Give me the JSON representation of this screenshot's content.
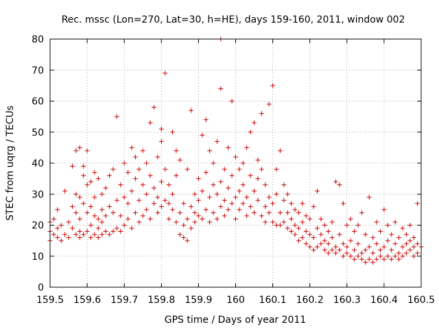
{
  "chart_data": {
    "type": "scatter",
    "title": "Rec. mssc (Lon=270, Lat=30, h=HE), days 159-160, 2011, window 002",
    "xlabel": "GPS time / Days of year 2011",
    "ylabel": "STEC from uqrg / TECUs",
    "xlim": [
      159.5,
      160.5
    ],
    "ylim": [
      0,
      80
    ],
    "x_ticks": [
      159.5,
      159.6,
      159.7,
      159.8,
      159.9,
      160.0,
      160.1,
      160.2,
      160.3,
      160.4,
      160.5
    ],
    "x_tick_labels": [
      "159.5",
      "159.6",
      "159.7",
      "159.8",
      "159.9",
      "160",
      "160.1",
      "160.2",
      "160.3",
      "160.4",
      "160.5"
    ],
    "y_ticks": [
      0,
      10,
      20,
      30,
      40,
      50,
      60,
      70,
      80
    ],
    "y_tick_labels": [
      "0",
      "10",
      "20",
      "30",
      "40",
      "50",
      "60",
      "70",
      "80"
    ],
    "grid": true,
    "marker": "plus",
    "color": "#cc0000",
    "series": [
      {
        "points": [
          [
            159.5,
            15
          ],
          [
            159.5,
            18
          ],
          [
            159.5,
            21
          ],
          [
            159.51,
            17
          ],
          [
            159.51,
            22
          ],
          [
            159.52,
            16
          ],
          [
            159.52,
            19
          ],
          [
            159.52,
            25
          ],
          [
            159.53,
            15
          ],
          [
            159.53,
            20
          ],
          [
            159.54,
            17
          ],
          [
            159.54,
            31
          ],
          [
            159.55,
            16
          ],
          [
            159.55,
            21
          ],
          [
            159.56,
            19
          ],
          [
            159.56,
            26
          ],
          [
            159.56,
            39
          ],
          [
            159.57,
            17
          ],
          [
            159.57,
            24
          ],
          [
            159.57,
            30
          ],
          [
            159.57,
            44
          ],
          [
            159.58,
            16
          ],
          [
            159.58,
            18
          ],
          [
            159.58,
            22
          ],
          [
            159.58,
            29
          ],
          [
            159.58,
            45
          ],
          [
            159.59,
            17
          ],
          [
            159.59,
            27
          ],
          [
            159.59,
            36
          ],
          [
            159.59,
            39
          ],
          [
            159.6,
            18
          ],
          [
            159.6,
            24
          ],
          [
            159.6,
            33
          ],
          [
            159.6,
            44
          ],
          [
            159.61,
            16
          ],
          [
            159.61,
            20
          ],
          [
            159.61,
            26
          ],
          [
            159.61,
            34
          ],
          [
            159.62,
            17
          ],
          [
            159.62,
            23
          ],
          [
            159.62,
            29
          ],
          [
            159.62,
            37
          ],
          [
            159.63,
            16
          ],
          [
            159.63,
            19
          ],
          [
            159.63,
            22
          ],
          [
            159.63,
            35
          ],
          [
            159.64,
            17
          ],
          [
            159.64,
            21
          ],
          [
            159.64,
            25
          ],
          [
            159.64,
            30
          ],
          [
            159.65,
            18
          ],
          [
            159.65,
            23
          ],
          [
            159.65,
            32
          ],
          [
            159.66,
            17
          ],
          [
            159.66,
            26
          ],
          [
            159.66,
            36
          ],
          [
            159.67,
            18
          ],
          [
            159.67,
            24
          ],
          [
            159.67,
            38
          ],
          [
            159.68,
            19
          ],
          [
            159.68,
            28
          ],
          [
            159.68,
            55
          ],
          [
            159.69,
            18
          ],
          [
            159.69,
            23
          ],
          [
            159.69,
            33
          ],
          [
            159.7,
            20
          ],
          [
            159.7,
            29
          ],
          [
            159.7,
            40
          ],
          [
            159.71,
            22
          ],
          [
            159.71,
            27
          ],
          [
            159.71,
            37
          ],
          [
            159.72,
            19
          ],
          [
            159.72,
            31
          ],
          [
            159.72,
            45
          ],
          [
            159.73,
            24
          ],
          [
            159.73,
            35
          ],
          [
            159.73,
            42
          ],
          [
            159.74,
            21
          ],
          [
            159.74,
            28
          ],
          [
            159.74,
            38
          ],
          [
            159.75,
            23
          ],
          [
            159.75,
            33
          ],
          [
            159.75,
            44
          ],
          [
            159.76,
            25
          ],
          [
            159.76,
            30
          ],
          [
            159.76,
            40
          ],
          [
            159.77,
            22
          ],
          [
            159.77,
            36
          ],
          [
            159.77,
            53
          ],
          [
            159.78,
            27
          ],
          [
            159.78,
            32
          ],
          [
            159.78,
            58
          ],
          [
            159.79,
            24
          ],
          [
            159.79,
            29
          ],
          [
            159.79,
            42
          ],
          [
            159.8,
            26
          ],
          [
            159.8,
            34
          ],
          [
            159.8,
            47
          ],
          [
            159.8,
            51
          ],
          [
            159.81,
            28
          ],
          [
            159.81,
            38
          ],
          [
            159.81,
            69
          ],
          [
            159.82,
            22
          ],
          [
            159.82,
            27
          ],
          [
            159.82,
            33
          ],
          [
            159.83,
            25
          ],
          [
            159.83,
            30
          ],
          [
            159.83,
            50
          ],
          [
            159.84,
            21
          ],
          [
            159.84,
            36
          ],
          [
            159.84,
            44
          ],
          [
            159.85,
            17
          ],
          [
            159.85,
            24
          ],
          [
            159.85,
            41
          ],
          [
            159.86,
            16
          ],
          [
            159.86,
            20
          ],
          [
            159.86,
            27
          ],
          [
            159.87,
            15
          ],
          [
            159.87,
            22
          ],
          [
            159.87,
            38
          ],
          [
            159.88,
            19
          ],
          [
            159.88,
            26
          ],
          [
            159.88,
            57
          ],
          [
            159.89,
            21
          ],
          [
            159.89,
            24
          ],
          [
            159.89,
            30
          ],
          [
            159.9,
            23
          ],
          [
            159.9,
            28
          ],
          [
            159.9,
            35
          ],
          [
            159.91,
            22
          ],
          [
            159.91,
            31
          ],
          [
            159.91,
            49
          ],
          [
            159.92,
            25
          ],
          [
            159.92,
            37
          ],
          [
            159.92,
            54
          ],
          [
            159.93,
            21
          ],
          [
            159.93,
            29
          ],
          [
            159.93,
            44
          ],
          [
            159.94,
            24
          ],
          [
            159.94,
            33
          ],
          [
            159.94,
            40
          ],
          [
            159.95,
            22
          ],
          [
            159.95,
            30
          ],
          [
            159.95,
            47
          ],
          [
            159.96,
            26
          ],
          [
            159.96,
            34
          ],
          [
            159.96,
            64
          ],
          [
            159.96,
            80
          ],
          [
            159.97,
            23
          ],
          [
            159.97,
            28
          ],
          [
            159.97,
            38
          ],
          [
            159.98,
            25
          ],
          [
            159.98,
            32
          ],
          [
            159.98,
            45
          ],
          [
            159.99,
            27
          ],
          [
            159.99,
            36
          ],
          [
            159.99,
            60
          ],
          [
            160.0,
            22
          ],
          [
            160.0,
            29
          ],
          [
            160.0,
            42
          ],
          [
            160.01,
            25
          ],
          [
            160.01,
            31
          ],
          [
            160.01,
            38
          ],
          [
            160.02,
            27
          ],
          [
            160.02,
            33
          ],
          [
            160.02,
            40
          ],
          [
            160.03,
            23
          ],
          [
            160.03,
            29
          ],
          [
            160.03,
            45
          ],
          [
            160.04,
            26
          ],
          [
            160.04,
            36
          ],
          [
            160.04,
            50
          ],
          [
            160.05,
            24
          ],
          [
            160.05,
            31
          ],
          [
            160.05,
            53
          ],
          [
            160.06,
            28
          ],
          [
            160.06,
            35
          ],
          [
            160.06,
            41
          ],
          [
            160.07,
            23
          ],
          [
            160.07,
            38
          ],
          [
            160.07,
            56
          ],
          [
            160.08,
            21
          ],
          [
            160.08,
            26
          ],
          [
            160.08,
            33
          ],
          [
            160.09,
            24
          ],
          [
            160.09,
            29
          ],
          [
            160.09,
            59
          ],
          [
            160.1,
            21
          ],
          [
            160.1,
            27
          ],
          [
            160.1,
            65
          ],
          [
            160.11,
            20
          ],
          [
            160.11,
            30
          ],
          [
            160.11,
            38
          ],
          [
            160.12,
            20
          ],
          [
            160.12,
            24
          ],
          [
            160.12,
            44
          ],
          [
            160.13,
            21
          ],
          [
            160.13,
            28
          ],
          [
            160.13,
            33
          ],
          [
            160.14,
            19
          ],
          [
            160.14,
            24
          ],
          [
            160.14,
            30
          ],
          [
            160.15,
            18
          ],
          [
            160.15,
            22
          ],
          [
            160.15,
            27
          ],
          [
            160.16,
            17
          ],
          [
            160.16,
            20
          ],
          [
            160.16,
            25
          ],
          [
            160.17,
            15
          ],
          [
            160.17,
            19
          ],
          [
            160.17,
            24
          ],
          [
            160.18,
            16
          ],
          [
            160.18,
            21
          ],
          [
            160.18,
            27
          ],
          [
            160.19,
            14
          ],
          [
            160.19,
            18
          ],
          [
            160.19,
            23
          ],
          [
            160.2,
            13
          ],
          [
            160.2,
            17
          ],
          [
            160.2,
            22
          ],
          [
            160.21,
            12
          ],
          [
            160.21,
            16
          ],
          [
            160.21,
            26
          ],
          [
            160.22,
            13
          ],
          [
            160.22,
            19
          ],
          [
            160.22,
            31
          ],
          [
            160.23,
            14
          ],
          [
            160.23,
            17
          ],
          [
            160.23,
            22
          ],
          [
            160.24,
            12
          ],
          [
            160.24,
            15
          ],
          [
            160.24,
            20
          ],
          [
            160.25,
            11
          ],
          [
            160.25,
            14
          ],
          [
            160.25,
            18
          ],
          [
            160.26,
            12
          ],
          [
            160.26,
            16
          ],
          [
            160.26,
            21
          ],
          [
            160.27,
            11
          ],
          [
            160.27,
            13
          ],
          [
            160.27,
            34
          ],
          [
            160.28,
            12
          ],
          [
            160.28,
            17
          ],
          [
            160.28,
            33
          ],
          [
            160.29,
            10
          ],
          [
            160.29,
            14
          ],
          [
            160.29,
            27
          ],
          [
            160.3,
            11
          ],
          [
            160.3,
            13
          ],
          [
            160.3,
            20
          ],
          [
            160.31,
            10
          ],
          [
            160.31,
            15
          ],
          [
            160.31,
            22
          ],
          [
            160.32,
            9
          ],
          [
            160.32,
            12
          ],
          [
            160.32,
            18
          ],
          [
            160.33,
            10
          ],
          [
            160.33,
            14
          ],
          [
            160.33,
            20
          ],
          [
            160.34,
            9
          ],
          [
            160.34,
            11
          ],
          [
            160.34,
            24
          ],
          [
            160.35,
            8
          ],
          [
            160.35,
            12
          ],
          [
            160.35,
            17
          ],
          [
            160.36,
            9
          ],
          [
            160.36,
            13
          ],
          [
            160.36,
            29
          ],
          [
            160.37,
            8
          ],
          [
            160.37,
            11
          ],
          [
            160.37,
            16
          ],
          [
            160.38,
            9
          ],
          [
            160.38,
            14
          ],
          [
            160.38,
            21
          ],
          [
            160.39,
            10
          ],
          [
            160.39,
            12
          ],
          [
            160.39,
            18
          ],
          [
            160.4,
            9
          ],
          [
            160.4,
            13
          ],
          [
            160.4,
            25
          ],
          [
            160.41,
            10
          ],
          [
            160.41,
            15
          ],
          [
            160.41,
            20
          ],
          [
            160.42,
            9
          ],
          [
            160.42,
            12
          ],
          [
            160.42,
            17
          ],
          [
            160.43,
            10
          ],
          [
            160.43,
            14
          ],
          [
            160.43,
            21
          ],
          [
            160.44,
            9
          ],
          [
            160.44,
            11
          ],
          [
            160.44,
            16
          ],
          [
            160.45,
            10
          ],
          [
            160.45,
            13
          ],
          [
            160.45,
            19
          ],
          [
            160.46,
            11
          ],
          [
            160.46,
            14
          ],
          [
            160.46,
            17
          ],
          [
            160.47,
            12
          ],
          [
            160.47,
            15
          ],
          [
            160.47,
            20
          ],
          [
            160.48,
            10
          ],
          [
            160.48,
            13
          ],
          [
            160.48,
            16
          ],
          [
            160.49,
            11
          ],
          [
            160.49,
            14
          ],
          [
            160.49,
            27
          ],
          [
            160.5,
            13
          ]
        ]
      }
    ]
  }
}
